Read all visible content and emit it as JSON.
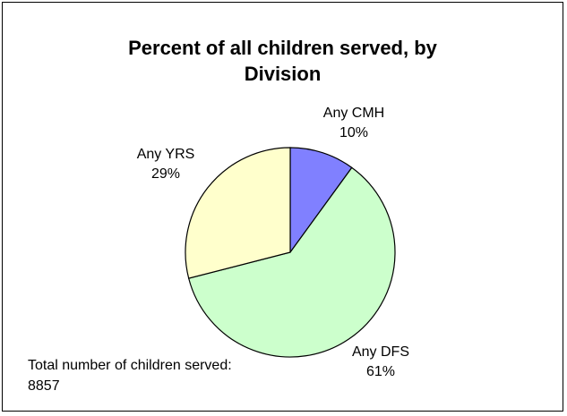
{
  "chart_data": {
    "type": "pie",
    "title": "Percent of all children served, by Division",
    "title_lines": [
      "Percent of all children served, by",
      "Division"
    ],
    "categories": [
      "Any CMH",
      "Any DFS",
      "Any YRS"
    ],
    "values": [
      10,
      61,
      29
    ],
    "value_labels": [
      "10%",
      "61%",
      "29%"
    ],
    "colors": [
      "#8080ff",
      "#ccffcc",
      "#ffffcc"
    ],
    "legend": "none",
    "note": "Total number of children served: 8857"
  }
}
